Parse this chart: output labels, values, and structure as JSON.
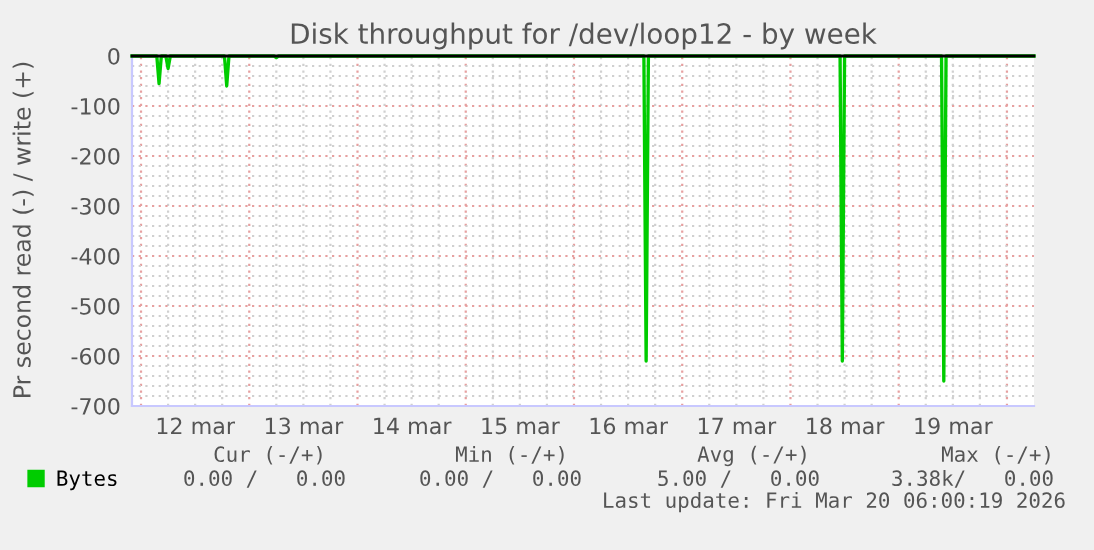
{
  "chart_data": {
    "type": "line",
    "title": "Disk throughput for /dev/loop12 - by week",
    "ylabel": "Pr second read (-) / write (+)",
    "x": [
      "2026-03-11T22:00",
      "2026-03-12T03:30",
      "2026-03-12T04:00",
      "2026-03-12T04:30",
      "2026-03-12T05:30",
      "2026-03-12T06:00",
      "2026-03-12T06:30",
      "2026-03-12T18:30",
      "2026-03-12T19:00",
      "2026-03-12T19:30",
      "2026-03-13T05:30",
      "2026-03-13T06:00",
      "2026-03-13T06:30",
      "2026-03-16T15:30",
      "2026-03-16T16:00",
      "2026-03-16T16:30",
      "2026-03-18T11:00",
      "2026-03-18T11:30",
      "2026-03-18T12:00",
      "2026-03-19T09:30",
      "2026-03-19T10:00",
      "2026-03-19T10:30",
      "2026-03-20T06:00"
    ],
    "series": [
      {
        "name": "Bytes",
        "color": "#00cc00",
        "values": [
          0,
          0,
          -55,
          0,
          0,
          -25,
          0,
          0,
          -60,
          0,
          0,
          -3,
          0,
          0,
          -610,
          0,
          0,
          -610,
          0,
          0,
          -650,
          0,
          0
        ]
      }
    ],
    "xlim": [
      "2026-03-11T22:00",
      "2026-03-20T06:00"
    ],
    "xticks": [
      {
        "value": "2026-03-12T12:00",
        "label": "12 mar"
      },
      {
        "value": "2026-03-13T12:00",
        "label": "13 mar"
      },
      {
        "value": "2026-03-14T12:00",
        "label": "14 mar"
      },
      {
        "value": "2026-03-15T12:00",
        "label": "15 mar"
      },
      {
        "value": "2026-03-16T12:00",
        "label": "16 mar"
      },
      {
        "value": "2026-03-17T12:00",
        "label": "17 mar"
      },
      {
        "value": "2026-03-18T12:00",
        "label": "18 mar"
      },
      {
        "value": "2026-03-19T12:00",
        "label": "19 mar"
      }
    ],
    "ylim": [
      -700,
      0
    ],
    "yticks": [
      -700,
      -600,
      -500,
      -400,
      -300,
      -200,
      -100,
      0
    ],
    "ref_lines": [
      {
        "axis": "y",
        "value": 0,
        "color": "#000000"
      }
    ],
    "grid": true,
    "legend": "bottom left",
    "marker": "none",
    "line_style": "solid",
    "annotations": [
      "Cur (-/+)",
      "Min (-/+)",
      "Avg (-/+)",
      "Max (-/+)",
      "0.00 /   0.00",
      "0.00 /   0.00",
      "5.00 /   0.00",
      "3.38k/   0.00",
      "Last update: Fri Mar 20 06:00:19 2026"
    ]
  }
}
